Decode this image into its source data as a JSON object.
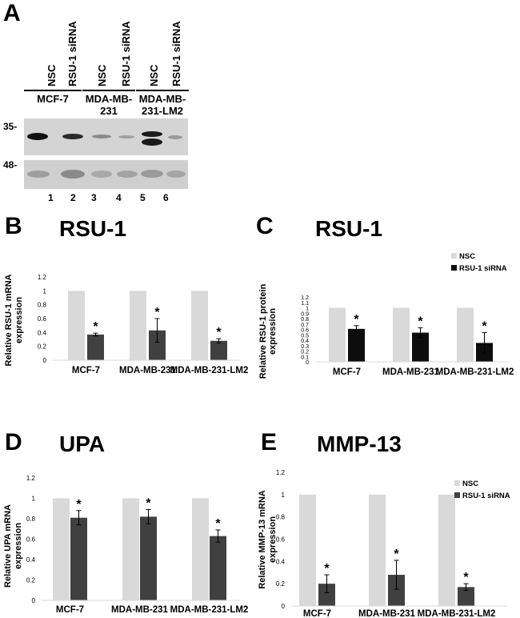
{
  "panel_a": {
    "letter": "A",
    "lane_labels": [
      "NSC",
      "RSU-1 siRNA",
      "NSC",
      "RSU-1 siRNA",
      "NSC",
      "RSU-1 siRNA"
    ],
    "cell_lines": [
      {
        "line1": "MCF-7",
        "line2": ""
      },
      {
        "line1": "MDA-MB-",
        "line2": "231"
      },
      {
        "line1": "MDA-MB-",
        "line2": "231-LM2"
      }
    ],
    "markers": [
      "35-",
      "48-"
    ],
    "lane_numbers": [
      "1",
      "2",
      "3",
      "4",
      "5",
      "6"
    ],
    "colors": {
      "blot_bg": "#d4d4d4",
      "band": "#1a1a1a"
    }
  },
  "chart_data": [
    {
      "id": "B",
      "letter": "B",
      "title": "RSU-1",
      "type": "bar",
      "ylabel_lines": [
        "Relative RSU-1 mRNA",
        "expression"
      ],
      "categories": [
        "MCF-7",
        "MDA-MB-231",
        "MDA-MB-231-LM2"
      ],
      "series": [
        {
          "name": "NSC",
          "values": [
            1,
            1,
            1
          ],
          "errors": [
            0,
            0,
            0
          ],
          "color": "#d9d9d9"
        },
        {
          "name": "RSU-1 siRNA",
          "values": [
            0.37,
            0.43,
            0.28
          ],
          "errors": [
            0.02,
            0.17,
            0.03
          ],
          "color": "#404040"
        }
      ],
      "significance": [
        "*",
        "*",
        "*"
      ],
      "yticks": [
        "0",
        "0.2",
        "0.4",
        "0.6",
        "0.8",
        "1",
        "1.2"
      ],
      "ylim": [
        0,
        1.2
      ],
      "legend": null
    },
    {
      "id": "C",
      "letter": "C",
      "title": "RSU-1",
      "type": "bar",
      "ylabel_lines": [
        "Relative RSU-1 protein",
        "expression"
      ],
      "categories": [
        "MCF-7",
        "MDA-MB-231",
        "MDA-MB-231-LM2"
      ],
      "series": [
        {
          "name": "NSC",
          "values": [
            1,
            1,
            1
          ],
          "errors": [
            0,
            0,
            0
          ],
          "color": "#d9d9d9"
        },
        {
          "name": "RSU-1 siRNA",
          "values": [
            0.61,
            0.54,
            0.35
          ],
          "errors": [
            0.06,
            0.09,
            0.19
          ],
          "color": "#0d0d0d"
        }
      ],
      "significance": [
        "*",
        "*",
        "*"
      ],
      "yticks": [
        "0",
        "0.1",
        "0.2",
        "0.3",
        "0.4",
        "0.5",
        "0.6",
        "0.7",
        "0.8",
        "0.9",
        "1",
        "1.1",
        "1.2"
      ],
      "ylim": [
        0,
        1.2
      ],
      "legend": "top-right"
    },
    {
      "id": "D",
      "letter": "D",
      "title": "UPA",
      "type": "bar",
      "ylabel_lines": [
        "Relative UPA mRNA",
        "expression"
      ],
      "categories": [
        "MCF-7",
        "MDA-MB-231",
        "MDA-MB-231-LM2"
      ],
      "series": [
        {
          "name": "NSC",
          "values": [
            1,
            1,
            1
          ],
          "errors": [
            0,
            0,
            0
          ],
          "color": "#d9d9d9"
        },
        {
          "name": "RSU-1 siRNA",
          "values": [
            0.81,
            0.82,
            0.63
          ],
          "errors": [
            0.07,
            0.07,
            0.06
          ],
          "color": "#404040"
        }
      ],
      "significance": [
        "*",
        "*",
        "*"
      ],
      "yticks": [
        "0",
        "0.2",
        "0.4",
        "0.6",
        "0.8",
        "1",
        "1.2"
      ],
      "ylim": [
        0,
        1.2
      ],
      "legend": null
    },
    {
      "id": "E",
      "letter": "E",
      "title": "MMP-13",
      "type": "bar",
      "ylabel_lines": [
        "Relative MMP-13 mRNA",
        "expression"
      ],
      "categories": [
        "MCF-7",
        "MDA-MB-231",
        "MDA-MB-231-LM2"
      ],
      "series": [
        {
          "name": "NSC",
          "values": [
            1,
            1,
            1
          ],
          "errors": [
            0,
            0,
            0
          ],
          "color": "#d9d9d9"
        },
        {
          "name": "RSU-1 siRNA",
          "values": [
            0.2,
            0.28,
            0.17
          ],
          "errors": [
            0.08,
            0.13,
            0.03
          ],
          "color": "#404040"
        }
      ],
      "significance": [
        "*",
        "*",
        "*"
      ],
      "yticks": [
        "0",
        "0.2",
        "0.4",
        "0.6",
        "0.8",
        "1",
        "1.2"
      ],
      "ylim": [
        0,
        1.2
      ],
      "legend": "top-right"
    }
  ]
}
